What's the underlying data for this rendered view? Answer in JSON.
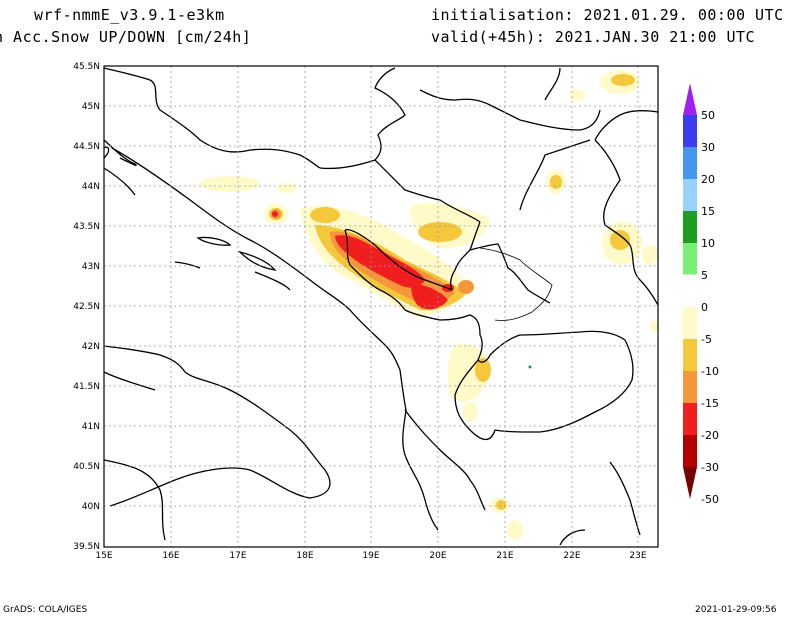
{
  "header": {
    "model": "wrf-nmmE_v3.9.1-e3km",
    "variable": "n Acc.Snow UP/DOWN [cm/24h]",
    "init": "initialisation: 2021.01.29.  00:00 UTC",
    "valid": "valid(+45h): 2021.JAN.30 21:00 UTC"
  },
  "footer": {
    "left": "GrADS: COLA/IGES",
    "right": "2021-01-29-09:56"
  },
  "axes": {
    "lat_labels": [
      "45.5N",
      "45N",
      "44.5N",
      "44N",
      "43.5N",
      "43N",
      "42.5N",
      "42N",
      "41.5N",
      "41N",
      "40.5N",
      "40N",
      "39.5N"
    ],
    "lon_labels": [
      "15E",
      "16E",
      "17E",
      "18E",
      "19E",
      "20E",
      "21E",
      "22E",
      "23E"
    ]
  },
  "colorbar": {
    "labels": [
      "50",
      "30",
      "20",
      "15",
      "10",
      "5",
      "0",
      "-5",
      "-10",
      "-15",
      "-20",
      "-30",
      "-50"
    ],
    "colors": [
      "#a020f0",
      "#3c3cf0",
      "#4696f0",
      "#96d2fa",
      "#1e9e1e",
      "#78f078",
      "#ffffff",
      "#fffac8",
      "#f5c83c",
      "#f5963c",
      "#f01e1e",
      "#b40000",
      "#780000"
    ]
  },
  "map": {
    "lat_range": [
      39.5,
      45.5
    ],
    "lon_range": [
      15,
      23.3
    ]
  }
}
